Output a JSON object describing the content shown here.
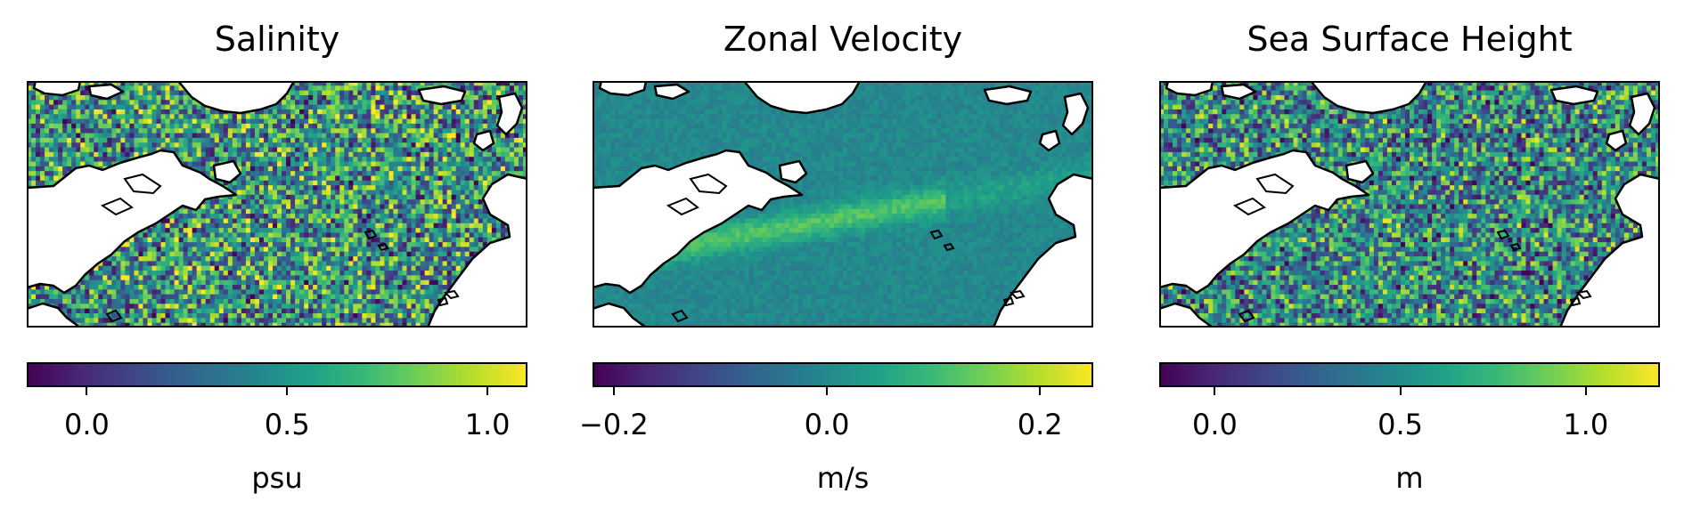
{
  "colors": {
    "viridis": [
      "#440154",
      "#482878",
      "#3e4989",
      "#31688e",
      "#26828e",
      "#1f9e89",
      "#35b779",
      "#6ece58",
      "#b5de2b",
      "#fde725"
    ],
    "coast": "#000000",
    "land": "#ffffff"
  },
  "chart_data": [
    {
      "type": "heatmap",
      "title": "Salinity",
      "colorbar_label": "psu",
      "colorbar_range": [
        -0.15,
        1.1
      ],
      "ticks": [
        {
          "value": 0.0,
          "label": "0.0"
        },
        {
          "value": 0.5,
          "label": "0.5"
        },
        {
          "value": 1.0,
          "label": "1.0"
        }
      ],
      "pattern": "noise",
      "field_mean": 0.5
    },
    {
      "type": "heatmap",
      "title": "Zonal Velocity",
      "colorbar_label": "m/s",
      "colorbar_range": [
        -0.22,
        0.25
      ],
      "ticks": [
        {
          "value": -0.2,
          "label": "−0.2"
        },
        {
          "value": 0.0,
          "label": "0.0"
        },
        {
          "value": 0.2,
          "label": "0.2"
        }
      ],
      "pattern": "smooth",
      "field_mean": 0.0
    },
    {
      "type": "heatmap",
      "title": "Sea Surface Height",
      "colorbar_label": "m",
      "colorbar_range": [
        -0.15,
        1.2
      ],
      "ticks": [
        {
          "value": 0.0,
          "label": "0.0"
        },
        {
          "value": 0.5,
          "label": "0.5"
        },
        {
          "value": 1.0,
          "label": "1.0"
        }
      ],
      "pattern": "noise",
      "field_mean": 0.5
    }
  ]
}
